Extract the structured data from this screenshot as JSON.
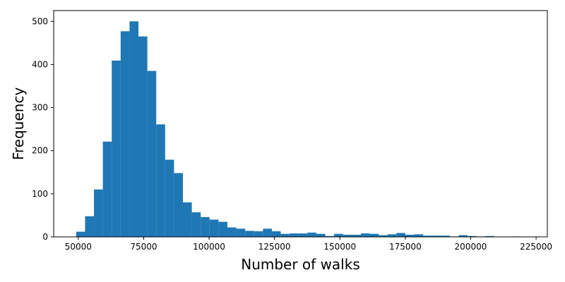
{
  "chart_data": {
    "type": "bar",
    "title": "",
    "xlabel": "Number of walks",
    "ylabel": "Frequency",
    "xlim": [
      40600,
      229300
    ],
    "ylim": [
      0,
      525
    ],
    "grid": false,
    "bar_color": "#1f77b4",
    "bin_width": 3400,
    "bin_start": 49200,
    "values": [
      12,
      48,
      110,
      221,
      409,
      477,
      500,
      465,
      385,
      261,
      179,
      148,
      80,
      57,
      46,
      40,
      35,
      22,
      19,
      14,
      13,
      19,
      13,
      7,
      8,
      8,
      10,
      7,
      2,
      7,
      5,
      5,
      8,
      7,
      4,
      6,
      9,
      5,
      6,
      3,
      3,
      3,
      1,
      4,
      2,
      1,
      2,
      0,
      0,
      1,
      0
    ],
    "x_ticks": [
      {
        "value": 50000,
        "label": "50000"
      },
      {
        "value": 75000,
        "label": "75000"
      },
      {
        "value": 100000,
        "label": "100000"
      },
      {
        "value": 125000,
        "label": "125000"
      },
      {
        "value": 150000,
        "label": "150000"
      },
      {
        "value": 175000,
        "label": "175000"
      },
      {
        "value": 200000,
        "label": "200000"
      },
      {
        "value": 225000,
        "label": "225000"
      }
    ],
    "y_ticks": [
      {
        "value": 0,
        "label": "0"
      },
      {
        "value": 100,
        "label": "100"
      },
      {
        "value": 200,
        "label": "200"
      },
      {
        "value": 300,
        "label": "300"
      },
      {
        "value": 400,
        "label": "400"
      },
      {
        "value": 500,
        "label": "500"
      }
    ]
  }
}
